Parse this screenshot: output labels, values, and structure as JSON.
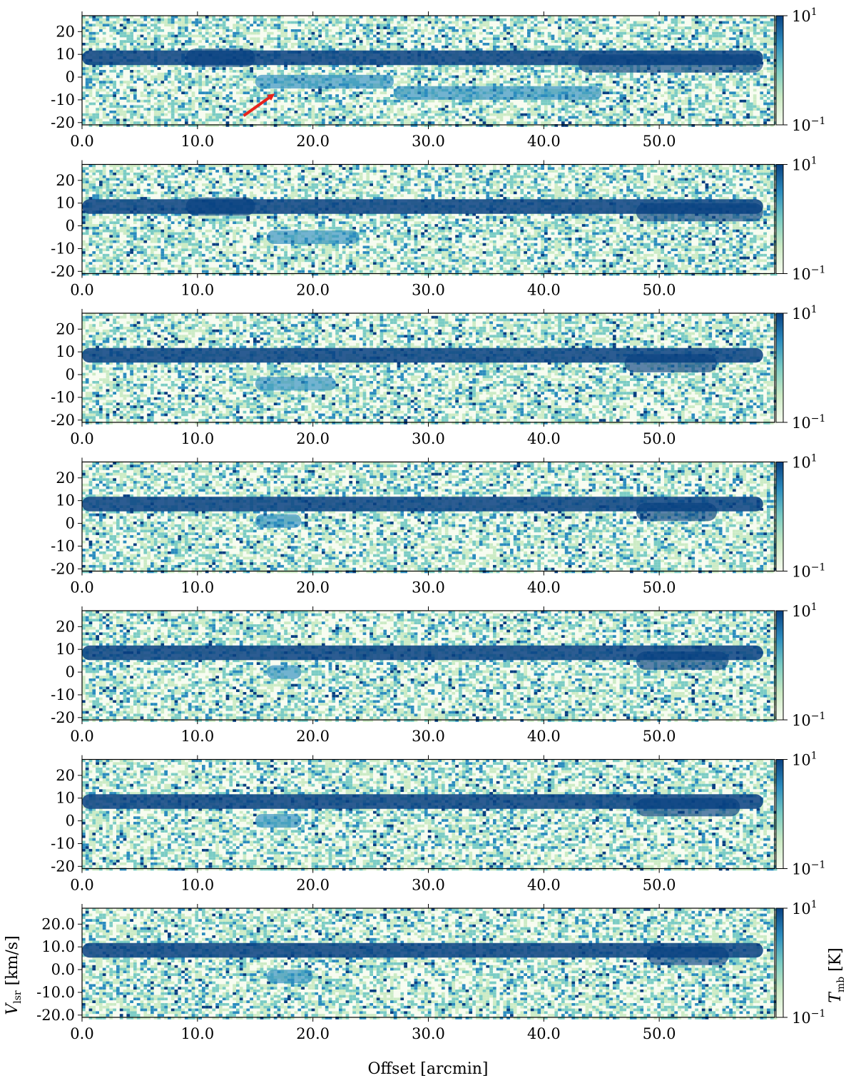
{
  "figure": {
    "xlabel": "Offset [arcmin]",
    "ylabel": "V",
    "ylabel_sub": "lsr",
    "ylabel_unit": " [km/s]",
    "cbar_label": "T",
    "cbar_label_sub": "mb",
    "cbar_label_unit": " [K]",
    "cbar_max_base": "10",
    "cbar_max_exp": "1",
    "cbar_min_base": "10",
    "cbar_min_exp": "−1",
    "colors": {
      "low": "#f7fcf0",
      "mid_low": "#ccebc5",
      "mid": "#7bccc4",
      "mid_high": "#2b8cbe",
      "high": "#084081",
      "arrow": "#e8231c"
    }
  },
  "chart_data": [
    {
      "type": "heatmap",
      "panel": 1,
      "xlim": [
        0,
        60
      ],
      "ylim": [
        -21,
        27
      ],
      "xticks": [
        "0.0",
        "10.0",
        "20.0",
        "30.0",
        "40.0",
        "50.0"
      ],
      "yticks": [
        "20",
        "10",
        "0",
        "-10",
        "-20"
      ],
      "colorbar": {
        "scale": "log",
        "range": [
          0.1,
          10
        ]
      },
      "features": [
        {
          "name": "main ridge",
          "offset_range": [
            0,
            59
          ],
          "vlsr": 8.5
        },
        {
          "name": "bright clump",
          "offset_range": [
            9,
            15
          ],
          "vlsr": 8.5
        },
        {
          "name": "secondary branch",
          "offset_range": [
            15,
            27
          ],
          "vlsr": -2
        },
        {
          "name": "faint lane",
          "offset_range": [
            27,
            45
          ],
          "vlsr": -7
        },
        {
          "name": "eastern complex",
          "offset_range": [
            43,
            59
          ],
          "vlsr": 6
        }
      ],
      "annotation": {
        "type": "arrow",
        "from": [
          14,
          -17
        ],
        "to": [
          16.5,
          -8
        ]
      }
    },
    {
      "type": "heatmap",
      "panel": 2,
      "xlim": [
        0,
        60
      ],
      "ylim": [
        -21,
        27
      ],
      "xticks": [
        "0.0",
        "10.0",
        "20.0",
        "30.0",
        "40.0",
        "50.0"
      ],
      "yticks": [
        "20",
        "10",
        "0",
        "-10",
        "-20"
      ],
      "colorbar": {
        "scale": "log",
        "range": [
          0.1,
          10
        ]
      },
      "features": [
        {
          "name": "main ridge",
          "offset_range": [
            0,
            59
          ],
          "vlsr": 8.5
        },
        {
          "name": "bright clump",
          "offset_range": [
            9,
            15
          ],
          "vlsr": 8.5
        },
        {
          "name": "secondary branch",
          "offset_range": [
            16,
            24
          ],
          "vlsr": -5
        },
        {
          "name": "eastern complex",
          "offset_range": [
            48,
            59
          ],
          "vlsr": 6
        }
      ]
    },
    {
      "type": "heatmap",
      "panel": 3,
      "xlim": [
        0,
        60
      ],
      "ylim": [
        -21,
        27
      ],
      "xticks": [
        "0.0",
        "10.0",
        "20.0",
        "30.0",
        "40.0",
        "50.0"
      ],
      "yticks": [
        "20",
        "10",
        "0",
        "-10",
        "-20"
      ],
      "colorbar": {
        "scale": "log",
        "range": [
          0.1,
          10
        ]
      },
      "features": [
        {
          "name": "main ridge",
          "offset_range": [
            0,
            59
          ],
          "vlsr": 8.5
        },
        {
          "name": "secondary branch",
          "offset_range": [
            15,
            22
          ],
          "vlsr": -4
        },
        {
          "name": "eastern complex",
          "offset_range": [
            47,
            55
          ],
          "vlsr": 5
        }
      ]
    },
    {
      "type": "heatmap",
      "panel": 4,
      "xlim": [
        0,
        60
      ],
      "ylim": [
        -21,
        27
      ],
      "xticks": [
        "0.0",
        "10.0",
        "20.0",
        "30.0",
        "40.0",
        "50.0"
      ],
      "yticks": [
        "20",
        "10",
        "0",
        "-10",
        "-20"
      ],
      "colorbar": {
        "scale": "log",
        "range": [
          0.1,
          10
        ]
      },
      "features": [
        {
          "name": "main ridge",
          "offset_range": [
            0,
            59
          ],
          "vlsr": 8.5
        },
        {
          "name": "secondary branch",
          "offset_range": [
            15,
            19
          ],
          "vlsr": 1
        },
        {
          "name": "eastern complex",
          "offset_range": [
            48,
            55
          ],
          "vlsr": 5
        }
      ]
    },
    {
      "type": "heatmap",
      "panel": 5,
      "xlim": [
        0,
        60
      ],
      "ylim": [
        -21,
        27
      ],
      "xticks": [
        "0.0",
        "10.0",
        "20.0",
        "30.0",
        "40.0",
        "50.0"
      ],
      "yticks": [
        "20",
        "10",
        "0",
        "-10",
        "-20"
      ],
      "colorbar": {
        "scale": "log",
        "range": [
          0.1,
          10
        ]
      },
      "features": [
        {
          "name": "main ridge",
          "offset_range": [
            0,
            59
          ],
          "vlsr": 8.5
        },
        {
          "name": "secondary branch",
          "offset_range": [
            16,
            19
          ],
          "vlsr": 0
        },
        {
          "name": "eastern complex",
          "offset_range": [
            48,
            56
          ],
          "vlsr": 5
        }
      ]
    },
    {
      "type": "heatmap",
      "panel": 6,
      "xlim": [
        0,
        60
      ],
      "ylim": [
        -21,
        27
      ],
      "xticks": [
        "0.0",
        "10.0",
        "20.0",
        "30.0",
        "40.0",
        "50.0"
      ],
      "yticks": [
        "20",
        "10",
        "0",
        "-10",
        "-20"
      ],
      "colorbar": {
        "scale": "log",
        "range": [
          0.1,
          10
        ]
      },
      "features": [
        {
          "name": "main ridge",
          "offset_range": [
            0,
            59
          ],
          "vlsr": 8.5
        },
        {
          "name": "secondary branch",
          "offset_range": [
            15,
            19
          ],
          "vlsr": 0
        },
        {
          "name": "eastern complex",
          "offset_range": [
            48,
            57
          ],
          "vlsr": 6
        }
      ]
    },
    {
      "type": "heatmap",
      "panel": 7,
      "xlim": [
        0,
        60
      ],
      "ylim": [
        -21,
        27
      ],
      "xticks": [
        "0.0",
        "10.0",
        "20.0",
        "30.0",
        "40.0",
        "50.0"
      ],
      "yticks": [
        "20.0",
        "10.0",
        "0.0",
        "-10.0",
        "-20.0"
      ],
      "colorbar": {
        "scale": "log",
        "range": [
          0.1,
          10
        ]
      },
      "features": [
        {
          "name": "main ridge",
          "offset_range": [
            0,
            59
          ],
          "vlsr": 8.5
        },
        {
          "name": "secondary branch",
          "offset_range": [
            16,
            20
          ],
          "vlsr": -3
        },
        {
          "name": "eastern complex",
          "offset_range": [
            49,
            56
          ],
          "vlsr": 6
        }
      ]
    }
  ]
}
